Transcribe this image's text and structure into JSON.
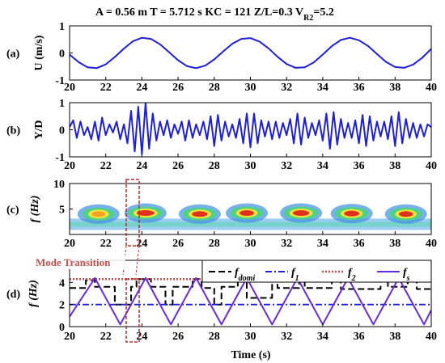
{
  "title": {
    "prefix": "A = 0.56 m   T = 5.712 s   KC = 121  Z/L=0.3 V",
    "sub": "R2",
    "suffix": "=5.2"
  },
  "xlabel": "Time (s)",
  "annotation": "Mode Transition",
  "colors": {
    "blue": "#1f1fd6",
    "black": "#000000",
    "dash_red": "#c0504d",
    "purple": "#6a2bd9",
    "red_box": "#b03030"
  },
  "chart_data": [
    {
      "type": "line",
      "panel_label": "(a)",
      "ylabel": "U (m/s)",
      "xlim": [
        20,
        40
      ],
      "ylim": [
        -1,
        1
      ],
      "xticks": [
        20,
        22,
        24,
        26,
        28,
        30,
        32,
        34,
        36,
        38,
        40
      ],
      "yticks": [
        -1,
        0,
        1
      ],
      "series": [
        {
          "x": [
            20,
            20.5,
            21,
            21.5,
            22,
            22.5,
            23,
            23.5,
            24,
            24.5,
            25,
            25.5,
            26,
            26.5,
            27,
            27.5,
            28,
            28.5,
            29,
            29.5,
            30,
            30.5,
            31,
            31.5,
            32,
            32.5,
            33,
            33.5,
            34,
            34.5,
            35,
            35.5,
            36,
            36.5,
            37,
            37.5,
            38,
            38.5,
            39,
            39.5,
            40
          ],
          "y": [
            -0.06,
            -0.34,
            -0.53,
            -0.56,
            -0.42,
            -0.15,
            0.16,
            0.43,
            0.56,
            0.52,
            0.32,
            0.03,
            -0.27,
            -0.49,
            -0.56,
            -0.47,
            -0.24,
            0.06,
            0.34,
            0.52,
            0.55,
            0.42,
            0.17,
            -0.14,
            -0.41,
            -0.55,
            -0.53,
            -0.35,
            -0.06,
            0.25,
            0.48,
            0.56,
            0.47,
            0.26,
            -0.04,
            -0.33,
            -0.52,
            -0.55,
            -0.43,
            -0.18,
            0.15
          ]
        }
      ]
    },
    {
      "type": "line",
      "panel_label": "(b)",
      "ylabel": "Y/D",
      "xlim": [
        20,
        40
      ],
      "ylim": [
        -1,
        1
      ],
      "xticks": [
        20,
        22,
        24,
        26,
        28,
        30,
        32,
        34,
        36,
        38,
        40
      ],
      "yticks": [
        -1,
        0,
        1
      ],
      "series": [
        {
          "x": [
            20,
            20.2,
            20.4,
            20.6,
            20.8,
            21,
            21.2,
            21.4,
            21.6,
            21.8,
            22,
            22.2,
            22.4,
            22.6,
            22.8,
            23,
            23.2,
            23.4,
            23.6,
            23.8,
            24,
            24.2,
            24.4,
            24.6,
            24.8,
            25,
            25.2,
            25.4,
            25.6,
            25.8,
            26,
            26.2,
            26.4,
            26.6,
            26.8,
            27,
            27.2,
            27.4,
            27.6,
            27.8,
            28,
            28.2,
            28.4,
            28.6,
            28.8,
            29,
            29.2,
            29.4,
            29.6,
            29.8,
            30,
            30.2,
            30.4,
            30.6,
            30.8,
            31,
            31.2,
            31.4,
            31.6,
            31.8,
            32,
            32.2,
            32.4,
            32.6,
            32.8,
            33,
            33.2,
            33.4,
            33.6,
            33.8,
            34,
            34.2,
            34.4,
            34.6,
            34.8,
            35,
            35.2,
            35.4,
            35.6,
            35.8,
            36,
            36.2,
            36.4,
            36.6,
            36.8,
            37,
            37.2,
            37.4,
            37.6,
            37.8,
            38,
            38.2,
            38.4,
            38.6,
            38.8,
            39,
            39.2,
            39.4,
            39.6,
            39.8,
            40
          ],
          "y": [
            0.1,
            0.35,
            -0.3,
            0.3,
            -0.2,
            0.1,
            -0.35,
            0.3,
            -0.4,
            0.45,
            -0.2,
            0.2,
            -0.1,
            0.3,
            -0.35,
            0.2,
            -0.5,
            0.7,
            -0.8,
            0.85,
            -0.9,
            1.0,
            -0.7,
            0.6,
            -0.4,
            0.3,
            -0.2,
            0.35,
            -0.3,
            0.2,
            -0.15,
            0.3,
            -0.4,
            0.35,
            -0.3,
            0.2,
            -0.2,
            0.3,
            -0.35,
            0.5,
            -0.6,
            0.55,
            -0.4,
            0.3,
            -0.25,
            0.2,
            -0.3,
            0.4,
            -0.5,
            0.6,
            -0.65,
            0.6,
            -0.5,
            0.35,
            -0.25,
            0.3,
            -0.35,
            0.3,
            -0.3,
            0.25,
            -0.2,
            0.4,
            -0.5,
            0.6,
            -0.55,
            0.45,
            -0.3,
            0.25,
            -0.2,
            0.35,
            -0.4,
            0.6,
            -0.7,
            0.65,
            -0.55,
            0.4,
            -0.3,
            0.25,
            -0.3,
            0.35,
            -0.5,
            0.55,
            -0.6,
            0.5,
            -0.4,
            0.3,
            -0.25,
            0.3,
            -0.35,
            0.5,
            -0.6,
            0.65,
            -0.5,
            0.4,
            -0.3,
            0.25,
            -0.3,
            0.2,
            -0.25,
            0.2,
            0.1
          ]
        }
      ]
    },
    {
      "type": "heatmap",
      "panel_label": "(c)",
      "ylabel": "f (Hz)",
      "xlim": [
        20,
        40
      ],
      "ylim": [
        0,
        10
      ],
      "xticks": [
        20,
        22,
        24,
        26,
        28,
        30,
        32,
        34,
        36,
        38,
        40
      ],
      "yticks": [
        5,
        10
      ],
      "blobs": [
        {
          "x": 21.6,
          "f": 4.0,
          "level": 0.45
        },
        {
          "x": 24.2,
          "f": 4.2,
          "level": 1.0
        },
        {
          "x": 27.2,
          "f": 4.0,
          "level": 0.75
        },
        {
          "x": 29.8,
          "f": 4.2,
          "level": 0.6
        },
        {
          "x": 32.8,
          "f": 4.2,
          "level": 0.85
        },
        {
          "x": 35.6,
          "f": 4.1,
          "level": 0.7
        },
        {
          "x": 38.6,
          "f": 4.0,
          "level": 0.55
        }
      ],
      "band": {
        "f": 2.0,
        "level": 0.4
      }
    },
    {
      "type": "line",
      "panel_label": "(d)",
      "ylabel": "f (Hz)",
      "xlim": [
        20,
        40
      ],
      "ylim": [
        0,
        6
      ],
      "xticks": [
        20,
        22,
        24,
        26,
        28,
        30,
        32,
        34,
        36,
        38,
        40
      ],
      "yticks": [
        0,
        2,
        4
      ],
      "series": [
        {
          "name_main": "f",
          "name_sub": "domi",
          "style": "black-dash",
          "x": [
            20,
            20.9,
            20.9,
            21.4,
            21.4,
            22.5,
            22.5,
            23.4,
            23.4,
            23.7,
            23.7,
            24.5,
            24.5,
            25.3,
            25.3,
            25.7,
            25.7,
            26.8,
            26.8,
            27.3,
            27.3,
            28.0,
            28.0,
            28.4,
            28.4,
            29.3,
            29.3,
            29.8,
            29.8,
            31.2,
            31.2,
            31.5,
            31.5,
            32.7,
            32.7,
            33.0,
            33.0,
            34.5,
            34.5,
            35.0,
            35.0,
            37.2,
            37.2,
            37.6,
            37.6,
            38.7,
            38.7,
            39.2,
            39.2,
            40
          ],
          "y": [
            3.5,
            3.5,
            4.2,
            4.2,
            3.6,
            3.6,
            2.0,
            2.0,
            3.6,
            3.6,
            4.3,
            4.3,
            3.6,
            3.6,
            2.0,
            2.0,
            3.6,
            3.6,
            4.3,
            4.3,
            3.5,
            3.5,
            2.0,
            2.0,
            3.6,
            3.6,
            4.3,
            4.3,
            2.6,
            2.6,
            4.2,
            4.2,
            3.5,
            3.5,
            4.2,
            4.2,
            3.5,
            3.5,
            4.2,
            4.2,
            3.4,
            3.4,
            4.2,
            4.2,
            3.6,
            3.6,
            4.2,
            4.2,
            3.4,
            3.4
          ]
        },
        {
          "name_main": "f",
          "name_sub": "1",
          "style": "blue-dashdot",
          "x": [
            20,
            40
          ],
          "y": [
            2.0,
            2.0
          ]
        },
        {
          "name_main": "f",
          "name_sub": "2",
          "style": "red-dot",
          "x": [
            20,
            40
          ],
          "y": [
            4.3,
            4.3
          ]
        },
        {
          "name_main": "f",
          "name_sub": "s",
          "style": "purple-solid",
          "x": [
            20,
            21.4,
            22.8,
            24.2,
            25.6,
            27.0,
            28.4,
            29.8,
            31.2,
            32.6,
            34.0,
            35.4,
            36.8,
            38.2,
            39.6,
            40
          ],
          "y": [
            0.9,
            4.4,
            0.2,
            4.4,
            0.2,
            4.4,
            0.2,
            4.4,
            0.2,
            4.4,
            0.2,
            4.4,
            0.2,
            4.4,
            0.2,
            1.5
          ]
        }
      ]
    }
  ]
}
